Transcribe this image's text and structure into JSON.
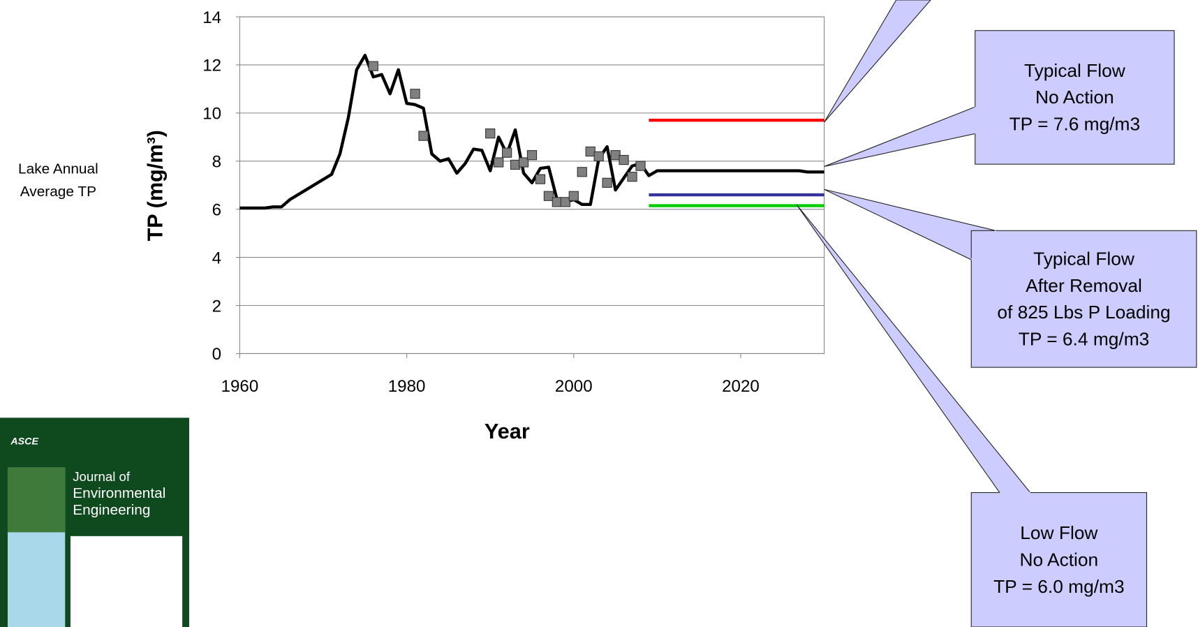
{
  "chart_data": {
    "type": "line",
    "x_label": "Year",
    "y_label": "TP (mg/m³)",
    "side_label": [
      "Lake Annual",
      "Average TP"
    ],
    "xlim": [
      1960,
      2030
    ],
    "xticks": [
      1960,
      1980,
      2000,
      2020
    ],
    "ylim": [
      0,
      14
    ],
    "yticks": [
      0,
      2,
      4,
      6,
      8,
      10,
      12,
      14
    ],
    "grid": true,
    "series": [
      {
        "color": "#000000",
        "style": "line",
        "x": [
          1960,
          1963,
          1964,
          1965,
          1966,
          1971,
          1972,
          1973,
          1974,
          1975,
          1976,
          1977,
          1978,
          1979,
          1980,
          1981,
          1982,
          1983,
          1984,
          1985,
          1986,
          1987,
          1988,
          1989,
          1990,
          1991,
          1992,
          1993,
          1994,
          1995,
          1996,
          1997,
          1998,
          1999,
          2000,
          2001,
          2002,
          2003,
          2004,
          2005,
          2006,
          2007,
          2008,
          2009,
          2010,
          2020,
          2027,
          2028,
          2030
        ],
        "values": [
          6.05,
          6.05,
          6.1,
          6.1,
          6.4,
          7.45,
          8.3,
          9.8,
          11.8,
          12.4,
          11.5,
          11.6,
          10.8,
          11.8,
          10.4,
          10.35,
          10.2,
          8.3,
          8.0,
          8.1,
          7.5,
          7.9,
          8.5,
          8.45,
          7.6,
          9.0,
          8.3,
          9.3,
          7.5,
          7.1,
          7.7,
          7.75,
          6.4,
          6.3,
          6.4,
          6.2,
          6.2,
          8.1,
          8.6,
          6.8,
          7.3,
          7.8,
          7.9,
          7.4,
          7.6,
          7.6,
          7.6,
          7.55,
          7.55
        ]
      },
      {
        "color": "#808080",
        "style": "markers",
        "x": [
          1976,
          1981,
          1982,
          1990,
          1991,
          1992,
          1993,
          1994,
          1995,
          1996,
          1997,
          1998,
          1999,
          2000,
          2001,
          2002,
          2003,
          2004,
          2005,
          2006,
          2007,
          2008
        ],
        "values": [
          11.95,
          10.8,
          9.05,
          9.15,
          7.95,
          8.35,
          7.85,
          7.95,
          8.25,
          7.25,
          6.55,
          6.3,
          6.3,
          6.55,
          7.55,
          8.4,
          8.2,
          7.1,
          8.25,
          8.05,
          7.35,
          7.8
        ]
      },
      {
        "color": "#ff0000",
        "style": "line",
        "x": [
          2009,
          2030
        ],
        "values": [
          9.7,
          9.7
        ]
      },
      {
        "color": "#333399",
        "style": "line",
        "x": [
          2009,
          2030
        ],
        "values": [
          6.6,
          6.6
        ]
      },
      {
        "color": "#00cc00",
        "style": "line",
        "x": [
          2009,
          2030
        ],
        "values": [
          6.15,
          6.15
        ]
      }
    ],
    "callouts": [
      {
        "lines": []
      },
      {
        "lines": [
          "Typical Flow",
          "No Action",
          "TP = 7.6 mg/m3"
        ]
      },
      {
        "lines": [
          "Typical Flow",
          "After Removal",
          "of 825 Lbs P Loading",
          "TP = 6.4 mg/m3"
        ]
      },
      {
        "lines": [
          "Low Flow",
          "No Action",
          "TP = 6.0 mg/m3"
        ]
      }
    ]
  },
  "cover": {
    "publisher": "ASCE",
    "title": [
      "Journal of",
      "Environmental",
      "Engineering"
    ]
  }
}
